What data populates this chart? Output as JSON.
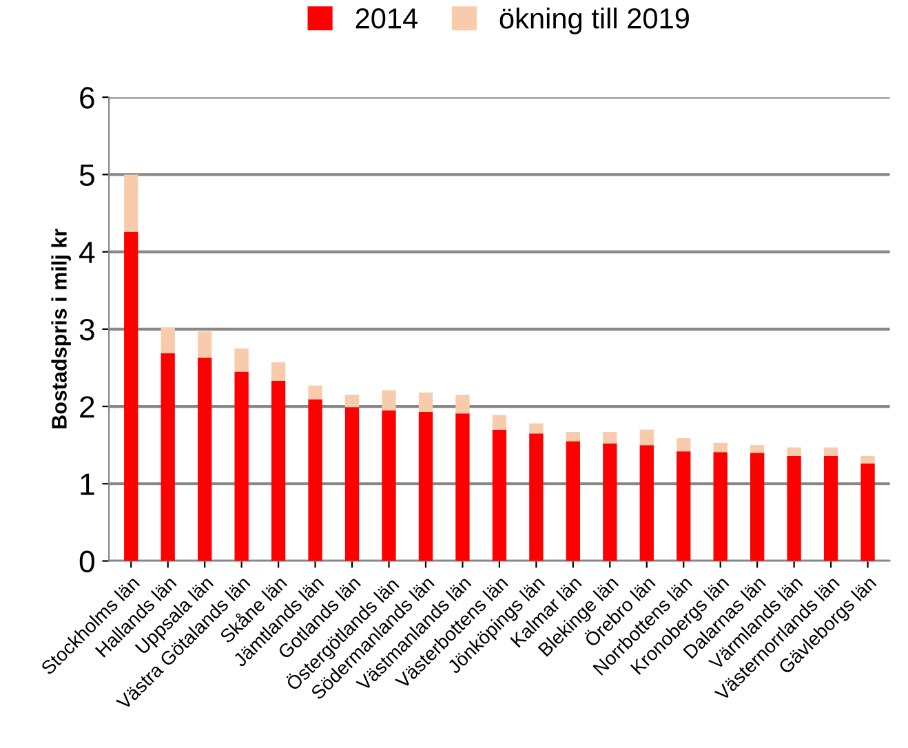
{
  "chart_data": {
    "type": "bar",
    "stacked": true,
    "ylabel": "Bostadspris i milj kr",
    "categories": [
      "Stockholms län",
      "Hallands län",
      "Uppsala län",
      "Västra Götalands län",
      "Skåne län",
      "Jämtlands län",
      "Gotlands län",
      "Östergötlands län",
      "Södermanlands län",
      "Västmanlands län",
      "Västerbottens län",
      "Jönköpings län",
      "Kalmar län",
      "Blekinge län",
      "Örebro län",
      "Norrbottens län",
      "Kronobergs län",
      "Dalarnas län",
      "Värmlands län",
      "Västernorrlands län",
      "Gävleborgs län"
    ],
    "series": [
      {
        "name": "2014",
        "color": "#ff0000",
        "values": [
          4.26,
          2.69,
          2.63,
          2.45,
          2.33,
          2.09,
          1.99,
          1.95,
          1.93,
          1.91,
          1.7,
          1.65,
          1.55,
          1.52,
          1.5,
          1.42,
          1.41,
          1.4,
          1.36,
          1.36,
          1.26
        ]
      },
      {
        "name": "ökning till 2019",
        "color": "#f8cbad",
        "values": [
          0.74,
          0.33,
          0.34,
          0.3,
          0.24,
          0.18,
          0.16,
          0.26,
          0.25,
          0.24,
          0.19,
          0.13,
          0.12,
          0.15,
          0.2,
          0.17,
          0.12,
          0.1,
          0.11,
          0.11,
          0.1
        ]
      }
    ],
    "ylim": [
      0,
      6
    ],
    "yticks": [
      0,
      1,
      2,
      3,
      4,
      5,
      6
    ],
    "grid": "y",
    "legend": "top"
  }
}
